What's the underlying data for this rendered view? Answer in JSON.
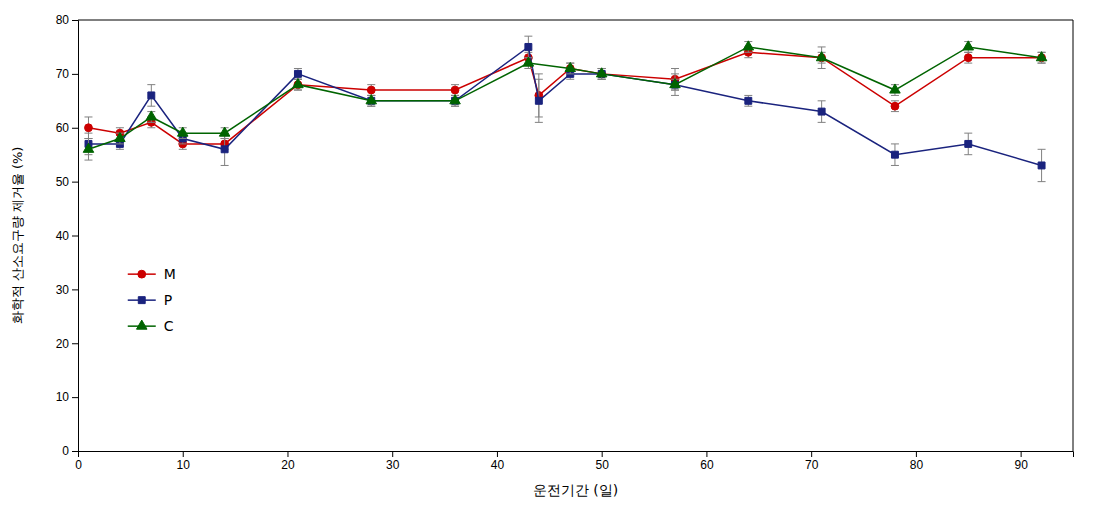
{
  "chart_data": {
    "type": "line",
    "x_label": "운전기간 (일)",
    "y_label": "화학적 산소요구량 제거율 (%)",
    "xlim": [
      0,
      95
    ],
    "ylim": [
      0,
      80
    ],
    "xticks": [
      0,
      10,
      20,
      30,
      40,
      50,
      60,
      70,
      80,
      90
    ],
    "yticks": [
      0,
      10,
      20,
      30,
      40,
      50,
      60,
      70,
      80
    ],
    "grid": false,
    "legend": "lower left",
    "series": [
      {
        "name": "M",
        "color": "#cc0000",
        "marker": "circle",
        "line_style": "solid",
        "x": [
          1,
          4,
          7,
          10,
          14,
          21,
          28,
          36,
          43,
          44,
          47,
          50,
          57,
          64,
          71,
          78,
          85,
          92
        ],
        "values": [
          60,
          59,
          61,
          57,
          57,
          68,
          67,
          67,
          73,
          66,
          71,
          70,
          69,
          74,
          73,
          64,
          73,
          73
        ],
        "errors": [
          2,
          1,
          1,
          1,
          1,
          1,
          1,
          1,
          1,
          4,
          1,
          1,
          2,
          1,
          2,
          1,
          1,
          1
        ]
      },
      {
        "name": "P",
        "color": "#1a237e",
        "marker": "square",
        "line_style": "solid",
        "x": [
          1,
          4,
          7,
          10,
          14,
          21,
          28,
          36,
          43,
          44,
          47,
          50,
          57,
          64,
          71,
          78,
          85,
          92
        ],
        "values": [
          57,
          57,
          66,
          58,
          56,
          70,
          65,
          65,
          75,
          65,
          70,
          70,
          68,
          65,
          63,
          55,
          57,
          53
        ],
        "errors": [
          2,
          1,
          2,
          1,
          3,
          1,
          1,
          1,
          2,
          4,
          1,
          1,
          1,
          1,
          2,
          2,
          2,
          3
        ]
      },
      {
        "name": "C",
        "color": "#006400",
        "marker": "triangle",
        "line_style": "solid",
        "x": [
          1,
          4,
          7,
          10,
          14,
          21,
          28,
          36,
          43,
          47,
          50,
          57,
          64,
          71,
          78,
          85,
          92
        ],
        "values": [
          56,
          58,
          62,
          59,
          59,
          68,
          65,
          65,
          72,
          71,
          70,
          68,
          75,
          73,
          67,
          75,
          73
        ],
        "errors": [
          2,
          1,
          1,
          1,
          1,
          1,
          1,
          1,
          1,
          1,
          1,
          2,
          1,
          1,
          1,
          1,
          1
        ]
      }
    ]
  }
}
